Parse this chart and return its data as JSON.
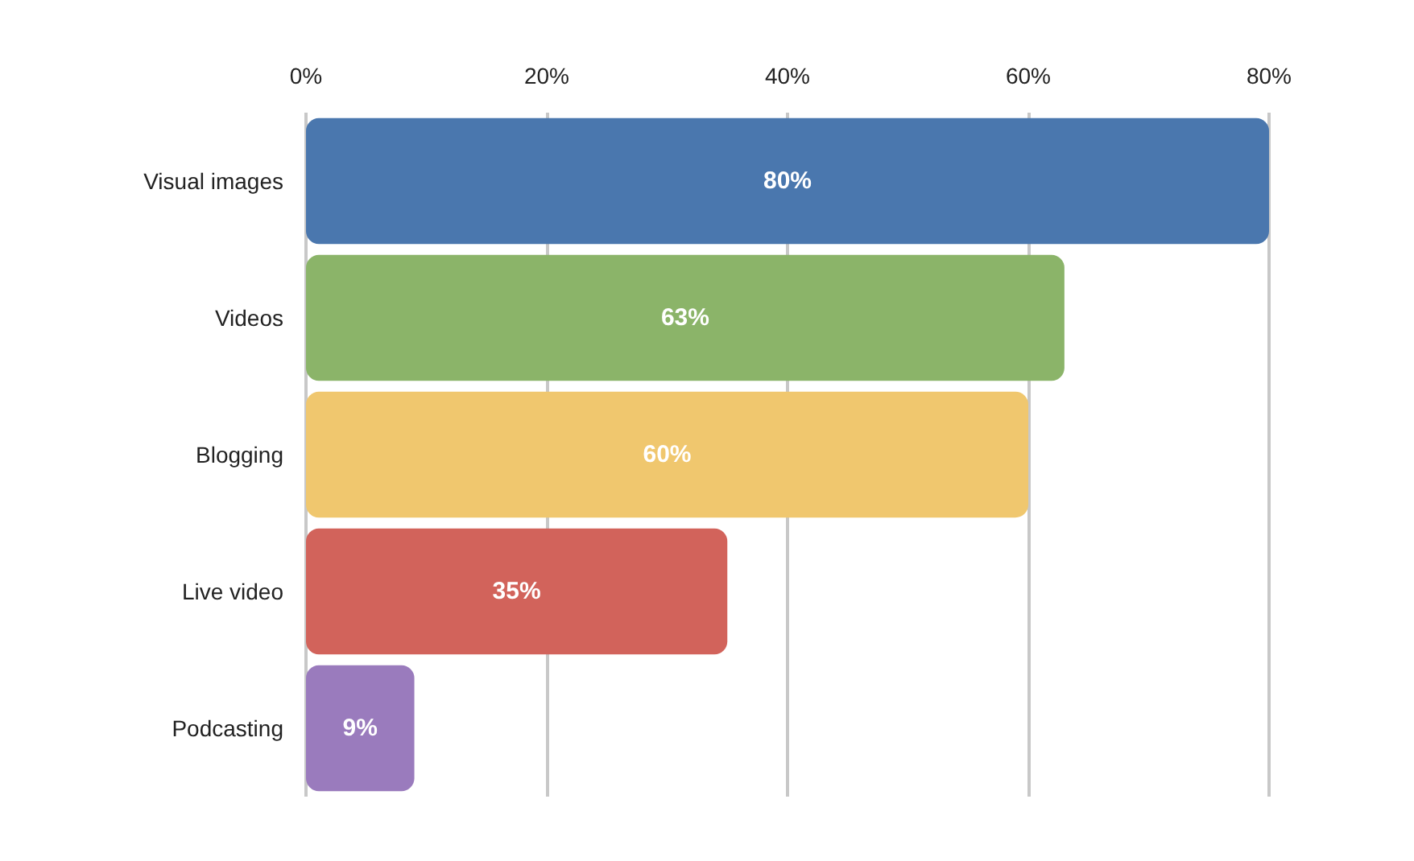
{
  "chart_data": {
    "type": "bar",
    "orientation": "horizontal",
    "categories": [
      "Visual images",
      "Videos",
      "Blogging",
      "Live video",
      "Podcasting"
    ],
    "values": [
      80,
      63,
      60,
      35,
      9
    ],
    "colors": [
      "#4a77ae",
      "#8bb469",
      "#f0c76e",
      "#d2635b",
      "#9a7bbd"
    ],
    "value_labels": [
      "80%",
      "63%",
      "60%",
      "35%",
      "9%"
    ],
    "xlim": [
      0,
      80
    ],
    "xticks": [
      {
        "value": 0,
        "label": "0%"
      },
      {
        "value": 20,
        "label": "20%"
      },
      {
        "value": 40,
        "label": "40%"
      },
      {
        "value": 60,
        "label": "60%"
      },
      {
        "value": 80,
        "label": "80%"
      }
    ],
    "grid": "x"
  }
}
